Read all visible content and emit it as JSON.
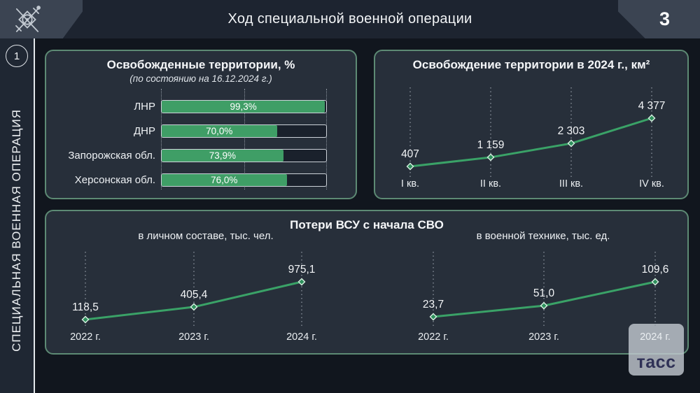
{
  "header": {
    "title": "Ход специальной военной операции",
    "page_number": "3"
  },
  "sidebar": {
    "badge": "1",
    "vertical_label": "СПЕЦИАЛЬНАЯ ВОЕННАЯ ОПЕРАЦИЯ"
  },
  "watermark": {
    "label": "тасс"
  },
  "colors": {
    "accent_green": "#3f9e66",
    "line_green": "#3aa267",
    "panel_border": "#5d8a74",
    "panel_bg": "#272f3a",
    "header_bg": "#1d2430",
    "corner_block": "#3b4452"
  },
  "icons": {
    "emblem": "military-emblem-icon"
  },
  "chart_data": [
    {
      "id": "liberated-territories",
      "type": "bar",
      "orientation": "horizontal",
      "title": "Освобожденные территории, %",
      "subtitle": "(по состоянию на 16.12.2024 г.)",
      "categories": [
        "ЛНР",
        "ДНР",
        "Запорожская обл.",
        "Херсонская обл."
      ],
      "values": [
        99.3,
        70.0,
        73.9,
        76.0
      ],
      "value_labels": [
        "99,3%",
        "70,0%",
        "73,9%",
        "76,0%"
      ],
      "xlim": [
        0,
        100
      ],
      "gridlines_percent": [
        0,
        50,
        100
      ],
      "bar_color": "#3f9e66"
    },
    {
      "id": "territory-liberated-2024",
      "type": "line",
      "title": "Освобождение территории в 2024 г., км²",
      "categories": [
        "I кв.",
        "II кв.",
        "III кв.",
        "IV кв."
      ],
      "values": [
        407,
        1159,
        2303,
        4377
      ],
      "value_labels": [
        "407",
        "1 159",
        "2 303",
        "4 377"
      ],
      "line_color": "#3aa267"
    },
    {
      "id": "vsu-losses-personnel",
      "type": "line",
      "panel_title": "Потери ВСУ с начала СВО",
      "subtitle": "в личном составе, тыс. чел.",
      "categories": [
        "2022 г.",
        "2023 г.",
        "2024 г."
      ],
      "values": [
        118.5,
        405.4,
        975.1
      ],
      "value_labels": [
        "118,5",
        "405,4",
        "975,1"
      ],
      "line_color": "#3aa267"
    },
    {
      "id": "vsu-losses-equipment",
      "type": "line",
      "panel_title": "Потери ВСУ с начала СВО",
      "subtitle": "в военной технике, тыс. ед.",
      "categories": [
        "2022 г.",
        "2023 г.",
        "2024 г."
      ],
      "values": [
        23.7,
        51.0,
        109.6
      ],
      "value_labels": [
        "23,7",
        "51,0",
        "109,6"
      ],
      "line_color": "#3aa267"
    }
  ]
}
